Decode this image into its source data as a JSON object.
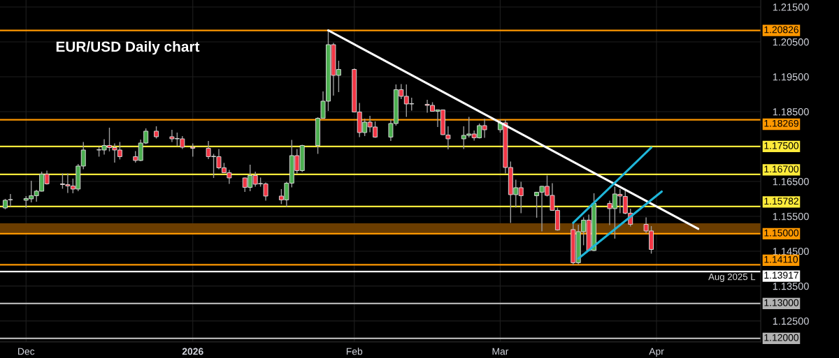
{
  "chart_data": {
    "type": "candlestick",
    "title": "EUR/USD Daily chart",
    "x": [
      "2025-11-27",
      "2025-11-28",
      "2025-12-01",
      "2025-12-02",
      "2025-12-03",
      "2025-12-04",
      "2025-12-05",
      "2025-12-08",
      "2025-12-09",
      "2025-12-10",
      "2025-12-11",
      "2025-12-12",
      "2025-12-15",
      "2025-12-16",
      "2025-12-17",
      "2025-12-18",
      "2025-12-19",
      "2025-12-22",
      "2025-12-23",
      "2025-12-24",
      "2025-12-26",
      "2025-12-29",
      "2025-12-30",
      "2025-12-31",
      "2026-01-02",
      "2026-01-05",
      "2026-01-06",
      "2026-01-07",
      "2026-01-08",
      "2026-01-09",
      "2026-01-12",
      "2026-01-13",
      "2026-01-14",
      "2026-01-15",
      "2026-01-16",
      "2026-01-19",
      "2026-01-20",
      "2026-01-21",
      "2026-01-22",
      "2026-01-23",
      "2026-01-26",
      "2026-01-27",
      "2026-01-28",
      "2026-01-29",
      "2026-01-30",
      "2026-02-02",
      "2026-02-03",
      "2026-02-04",
      "2026-02-05",
      "2026-02-06",
      "2026-02-09",
      "2026-02-10",
      "2026-02-11",
      "2026-02-12",
      "2026-02-13",
      "2026-02-16",
      "2026-02-17",
      "2026-02-18",
      "2026-02-19",
      "2026-02-20",
      "2026-02-23",
      "2026-02-24",
      "2026-02-25",
      "2026-02-26",
      "2026-02-27",
      "2026-03-02",
      "2026-03-03",
      "2026-03-04",
      "2026-03-05",
      "2026-03-06",
      "2026-03-09",
      "2026-03-10",
      "2026-03-11",
      "2026-03-12",
      "2026-03-13",
      "2026-03-16",
      "2026-03-17",
      "2026-03-18",
      "2026-03-19",
      "2026-03-20",
      "2026-03-23",
      "2026-03-24",
      "2026-03-25",
      "2026-03-26",
      "2026-03-27",
      "2026-03-30",
      "2026-03-31"
    ],
    "ohlc": [
      [
        1.1574,
        1.16,
        1.157,
        1.1596
      ],
      [
        1.1597,
        1.1614,
        1.1578,
        1.1598
      ],
      [
        1.1596,
        1.1608,
        1.1574,
        1.1601
      ],
      [
        1.16,
        1.1652,
        1.159,
        1.1609
      ],
      [
        1.1609,
        1.1626,
        1.1592,
        1.1622
      ],
      [
        1.1622,
        1.1678,
        1.1621,
        1.1671
      ],
      [
        1.1671,
        1.1681,
        1.1641,
        1.1643
      ],
      [
        1.1643,
        1.1673,
        1.1629,
        1.1641
      ],
      [
        1.1641,
        1.1673,
        1.1617,
        1.1637
      ],
      [
        1.1637,
        1.1658,
        1.1616,
        1.1628
      ],
      [
        1.1628,
        1.17,
        1.1622,
        1.1694
      ],
      [
        1.1694,
        1.1763,
        1.1685,
        1.174
      ],
      [
        1.174,
        1.1749,
        1.1721,
        1.1741
      ],
      [
        1.174,
        1.1771,
        1.1727,
        1.1753
      ],
      [
        1.1753,
        1.1804,
        1.1736,
        1.1747
      ],
      [
        1.1747,
        1.1759,
        1.1704,
        1.174
      ],
      [
        1.174,
        1.1763,
        1.1713,
        1.1721
      ],
      [
        1.1721,
        1.1737,
        1.1704,
        1.171
      ],
      [
        1.171,
        1.177,
        1.1708,
        1.176
      ],
      [
        1.176,
        1.1802,
        1.1757,
        1.1794
      ],
      [
        1.1794,
        1.1808,
        1.1773,
        1.1778
      ],
      [
        1.1778,
        1.1798,
        1.1763,
        1.1772
      ],
      [
        1.1772,
        1.179,
        1.1751,
        1.1773
      ],
      [
        1.1772,
        1.178,
        1.1743,
        1.1748
      ],
      [
        1.1748,
        1.1759,
        1.1721,
        1.1745
      ],
      [
        1.1745,
        1.1766,
        1.1714,
        1.1721
      ],
      [
        1.1721,
        1.1729,
        1.166,
        1.1722
      ],
      [
        1.1721,
        1.1743,
        1.1685,
        1.1689
      ],
      [
        1.1689,
        1.1703,
        1.1674,
        1.1675
      ],
      [
        1.1675,
        1.1683,
        1.1643,
        1.166
      ],
      [
        1.166,
        1.1661,
        1.162,
        1.1633
      ],
      [
        1.1633,
        1.1698,
        1.1622,
        1.1667
      ],
      [
        1.1667,
        1.1678,
        1.1635,
        1.1642
      ],
      [
        1.1643,
        1.1661,
        1.1635,
        1.1644
      ],
      [
        1.1643,
        1.1647,
        1.1595,
        1.1608
      ],
      [
        1.1608,
        1.1628,
        1.1585,
        1.1597
      ],
      [
        1.1597,
        1.1649,
        1.1577,
        1.1645
      ],
      [
        1.1645,
        1.1769,
        1.1633,
        1.1724
      ],
      [
        1.1724,
        1.1743,
        1.1673,
        1.1681
      ],
      [
        1.1681,
        1.1755,
        1.1677,
        1.1753
      ],
      [
        1.1753,
        1.1834,
        1.1729,
        1.1831
      ],
      [
        1.1831,
        1.1908,
        1.183,
        1.188
      ],
      [
        1.188,
        1.2083,
        1.1852,
        1.2042
      ],
      [
        1.2042,
        1.2047,
        1.1896,
        1.1954
      ],
      [
        1.1954,
        1.1996,
        1.1906,
        1.1971
      ],
      [
        1.1971,
        1.1974,
        1.1848,
        1.1849
      ],
      [
        1.1849,
        1.1875,
        1.1777,
        1.179
      ],
      [
        1.179,
        1.183,
        1.178,
        1.182
      ],
      [
        1.182,
        1.1838,
        1.1791,
        1.1806
      ],
      [
        1.1806,
        1.1822,
        1.1775,
        1.1777
      ],
      [
        1.1777,
        1.1827,
        1.1766,
        1.1816
      ],
      [
        1.1816,
        1.1928,
        1.181,
        1.1913
      ],
      [
        1.1913,
        1.1929,
        1.1886,
        1.1894
      ],
      [
        1.1894,
        1.1928,
        1.1835,
        1.1872
      ],
      [
        1.1872,
        1.189,
        1.1853,
        1.1873
      ],
      [
        1.1871,
        1.1884,
        1.1847,
        1.1868
      ],
      [
        1.1868,
        1.1877,
        1.185,
        1.1851
      ],
      [
        1.1851,
        1.1856,
        1.1806,
        1.1855
      ],
      [
        1.1855,
        1.1856,
        1.1783,
        1.1784
      ],
      [
        1.1783,
        1.1808,
        1.1742,
        1.1772
      ],
      [
        1.1772,
        1.1808,
        1.1743,
        1.1782
      ],
      [
        1.1782,
        1.1835,
        1.1776,
        1.1786
      ],
      [
        1.1786,
        1.1796,
        1.1767,
        1.1775
      ],
      [
        1.1775,
        1.1816,
        1.1773,
        1.181
      ],
      [
        1.181,
        1.183,
        1.1775,
        1.1798
      ],
      [
        1.1798,
        1.1828,
        1.179,
        1.1818
      ],
      [
        1.1818,
        1.1827,
        1.1673,
        1.169
      ],
      [
        1.169,
        1.1707,
        1.1531,
        1.1612
      ],
      [
        1.1612,
        1.1655,
        1.1575,
        1.1632
      ],
      [
        1.1632,
        1.1649,
        1.1559,
        1.1609
      ],
      [
        1.1609,
        1.162,
        1.1546,
        1.1619
      ],
      [
        1.1619,
        1.1637,
        1.1507,
        1.1636
      ],
      [
        1.1636,
        1.1667,
        1.1607,
        1.161
      ],
      [
        1.161,
        1.1645,
        1.1566,
        1.1567
      ],
      [
        1.1567,
        1.1575,
        1.1509,
        1.1511
      ],
      [
        1.1512,
        1.1531,
        1.1411,
        1.1417
      ],
      [
        1.1417,
        1.1526,
        1.1412,
        1.1506
      ],
      [
        1.1506,
        1.1547,
        1.1467,
        1.1539
      ],
      [
        1.1539,
        1.1555,
        1.145,
        1.1452
      ],
      [
        1.1452,
        1.1616,
        1.145,
        1.1587
      ],
      [
        1.1587,
        1.1595,
        1.1525,
        1.1572
      ],
      [
        1.1572,
        1.1635,
        1.1486,
        1.1614
      ],
      [
        1.1613,
        1.1628,
        1.1559,
        1.1608
      ],
      [
        1.1607,
        1.1629,
        1.1556,
        1.1559
      ],
      [
        1.1559,
        1.1572,
        1.1521,
        1.1527
      ],
      [
        1.1527,
        1.1547,
        1.1502,
        1.1508
      ],
      [
        1.1508,
        1.1522,
        1.1443,
        1.1455
      ]
    ],
    "series": [
      {
        "type": "line",
        "color": "#ffffff",
        "x": [
          "2026-01-28",
          "2026-04-09"
        ],
        "values": [
          1.2083,
          1.1514
        ]
      },
      {
        "type": "line",
        "color": "#1fb6d9",
        "x": [
          "2026-03-16",
          "2026-03-31"
        ],
        "values": [
          1.1531,
          1.1747
        ]
      },
      {
        "type": "line",
        "color": "#1fb6d9",
        "x": [
          "2026-03-17",
          "2026-04-02"
        ],
        "values": [
          1.1429,
          1.1621
        ]
      }
    ],
    "ref_lines": [
      {
        "axis": "y",
        "value": 1.20826,
        "label": "1.20826",
        "color": "#ff9800"
      },
      {
        "axis": "y",
        "value": 1.18269,
        "label": "1.18269",
        "color": "#ff9800"
      },
      {
        "axis": "y",
        "value": 1.175,
        "label": "1.17500",
        "color": "#ffeb3b"
      },
      {
        "axis": "y",
        "value": 1.167,
        "label": "1.16700",
        "color": "#ffeb3b"
      },
      {
        "axis": "y",
        "value": 1.15782,
        "label": "1.15782",
        "color": "#ffeb3b"
      },
      {
        "axis": "y",
        "value": 1.15,
        "label": "1.15000",
        "color": "#ff9800"
      },
      {
        "axis": "y",
        "value": 1.1411,
        "label": "1.14110",
        "color": "#ff9800"
      },
      {
        "axis": "y",
        "value": 1.13917,
        "label": "1.13917",
        "color": "#ffffff"
      },
      {
        "axis": "y",
        "value": 1.13,
        "label": "1.13000",
        "color": "#b2b2b2"
      },
      {
        "axis": "y",
        "value": 1.12,
        "label": "1.12000",
        "color": "#b2b2b2"
      }
    ],
    "bands": [
      {
        "axis": "y",
        "from": 1.15,
        "to": 1.153,
        "color": "#6b3d00"
      }
    ],
    "annotations": [
      {
        "text": "Aug 2025 L",
        "x": "2026-04-20",
        "y": 1.13917
      }
    ],
    "xlim": [
      "2025-11-26",
      "2026-04-21"
    ],
    "xticks": [
      {
        "value": "2025-12-01",
        "label": "Dec"
      },
      {
        "value": "2026-01-02",
        "label": "2026"
      },
      {
        "value": "2026-02-02",
        "label": "Feb"
      },
      {
        "value": "2026-03-02",
        "label": "Mar"
      },
      {
        "value": "2026-04-01",
        "label": "Apr"
      }
    ],
    "ylim": [
      1.119,
      1.217
    ],
    "grid": true,
    "yticks": [
      {
        "value": 1.125,
        "label": "1.12500"
      },
      {
        "value": 1.135,
        "label": "1.13500"
      },
      {
        "value": 1.145,
        "label": "1.14500"
      },
      {
        "value": 1.155,
        "label": "1.15500"
      },
      {
        "value": 1.165,
        "label": "1.16500"
      },
      {
        "value": 1.175,
        "label": null
      },
      {
        "value": 1.185,
        "label": "1.18500"
      },
      {
        "value": 1.195,
        "label": "1.19500"
      },
      {
        "value": 1.205,
        "label": "1.20500"
      },
      {
        "value": 1.215,
        "label": "1.21500"
      }
    ]
  }
}
